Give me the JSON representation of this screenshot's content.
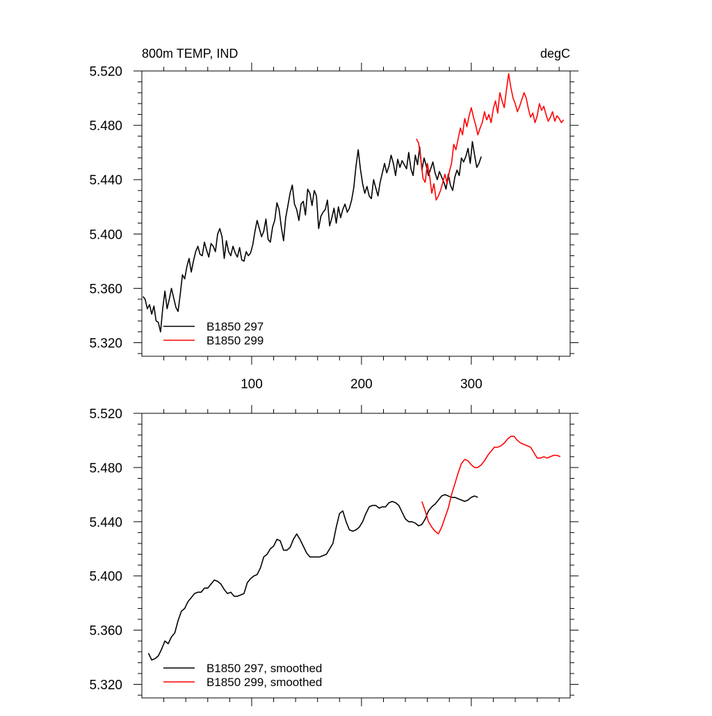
{
  "chart_data": [
    {
      "type": "line",
      "title_left": "800m TEMP, IND",
      "title_right": "degC",
      "xlabel": "",
      "ylabel": "",
      "xlim": [
        0,
        390
      ],
      "ylim": [
        5.31,
        5.52
      ],
      "xticks": [
        100,
        200,
        300
      ],
      "xtick_labels": [
        "100",
        "200",
        "300"
      ],
      "yticks": [
        5.32,
        5.36,
        5.4,
        5.44,
        5.48,
        5.52
      ],
      "ytick_labels": [
        "5.320",
        "5.360",
        "5.400",
        "5.440",
        "5.480",
        "5.520"
      ],
      "legend_position": "bottom-left",
      "series": [
        {
          "name": "B1850 297",
          "color": "#000000",
          "x": [
            1,
            3,
            5,
            7,
            9,
            11,
            13,
            15,
            17,
            19,
            21,
            23,
            25,
            27,
            29,
            31,
            33,
            35,
            37,
            39,
            41,
            43,
            45,
            47,
            49,
            51,
            53,
            55,
            57,
            59,
            61,
            63,
            65,
            67,
            69,
            71,
            73,
            75,
            77,
            79,
            81,
            83,
            85,
            87,
            89,
            91,
            93,
            95,
            97,
            99,
            101,
            103,
            105,
            107,
            109,
            111,
            113,
            115,
            117,
            119,
            121,
            123,
            125,
            127,
            129,
            131,
            133,
            135,
            137,
            139,
            141,
            143,
            145,
            147,
            149,
            151,
            153,
            155,
            157,
            159,
            161,
            163,
            165,
            167,
            169,
            171,
            173,
            175,
            177,
            179,
            181,
            183,
            185,
            187,
            189,
            191,
            193,
            195,
            197,
            199,
            201,
            203,
            205,
            207,
            209,
            211,
            213,
            215,
            217,
            219,
            221,
            223,
            225,
            227,
            229,
            231,
            233,
            235,
            237,
            239,
            241,
            243,
            245,
            247,
            249,
            251,
            253,
            255,
            257,
            259,
            261,
            263,
            265,
            267,
            269,
            271,
            273,
            275,
            277,
            279,
            281,
            283,
            285,
            287,
            289,
            291,
            293,
            295,
            297,
            299,
            301,
            303,
            305,
            307,
            309
          ],
          "values": [
            5.354,
            5.352,
            5.345,
            5.348,
            5.341,
            5.347,
            5.336,
            5.335,
            5.328,
            5.345,
            5.358,
            5.345,
            5.352,
            5.36,
            5.353,
            5.346,
            5.343,
            5.356,
            5.37,
            5.367,
            5.376,
            5.382,
            5.372,
            5.38,
            5.387,
            5.391,
            5.385,
            5.384,
            5.394,
            5.388,
            5.383,
            5.393,
            5.391,
            5.387,
            5.4,
            5.404,
            5.398,
            5.382,
            5.395,
            5.387,
            5.384,
            5.391,
            5.386,
            5.383,
            5.39,
            5.381,
            5.38,
            5.387,
            5.384,
            5.386,
            5.392,
            5.402,
            5.41,
            5.404,
            5.398,
            5.402,
            5.411,
            5.396,
            5.394,
            5.405,
            5.41,
            5.423,
            5.418,
            5.405,
            5.395,
            5.412,
            5.421,
            5.43,
            5.436,
            5.422,
            5.418,
            5.41,
            5.422,
            5.424,
            5.414,
            5.433,
            5.43,
            5.421,
            5.432,
            5.428,
            5.404,
            5.413,
            5.416,
            5.418,
            5.425,
            5.406,
            5.412,
            5.419,
            5.408,
            5.42,
            5.412,
            5.418,
            5.422,
            5.416,
            5.419,
            5.425,
            5.434,
            5.45,
            5.462,
            5.448,
            5.437,
            5.43,
            5.435,
            5.428,
            5.426,
            5.44,
            5.434,
            5.428,
            5.438,
            5.445,
            5.452,
            5.445,
            5.45,
            5.458,
            5.452,
            5.443,
            5.455,
            5.449,
            5.454,
            5.451,
            5.448,
            5.46,
            5.448,
            5.443,
            5.458,
            5.451,
            5.464,
            5.447,
            5.456,
            5.45,
            5.443,
            5.448,
            5.453,
            5.445,
            5.44,
            5.446,
            5.442,
            5.438,
            5.433,
            5.444,
            5.436,
            5.432,
            5.442,
            5.447,
            5.443,
            5.456,
            5.453,
            5.457,
            5.463,
            5.452,
            5.468,
            5.458,
            5.449,
            5.452,
            5.457
          ]
        },
        {
          "name": "B1850 299",
          "color": "#ff0000",
          "x": [
            250,
            252,
            254,
            256,
            258,
            260,
            262,
            264,
            266,
            268,
            270,
            272,
            274,
            276,
            278,
            280,
            282,
            284,
            286,
            288,
            290,
            292,
            294,
            296,
            298,
            300,
            302,
            304,
            306,
            308,
            310,
            312,
            314,
            316,
            318,
            320,
            322,
            324,
            326,
            328,
            330,
            332,
            334,
            336,
            338,
            340,
            342,
            344,
            346,
            348,
            350,
            352,
            354,
            356,
            358,
            360,
            362,
            364,
            366,
            368,
            370,
            372,
            374,
            376,
            378,
            380,
            382,
            384
          ],
          "values": [
            5.47,
            5.467,
            5.455,
            5.441,
            5.438,
            5.452,
            5.443,
            5.43,
            5.437,
            5.425,
            5.428,
            5.432,
            5.438,
            5.444,
            5.437,
            5.446,
            5.452,
            5.466,
            5.462,
            5.47,
            5.478,
            5.473,
            5.485,
            5.479,
            5.487,
            5.493,
            5.486,
            5.48,
            5.473,
            5.478,
            5.482,
            5.49,
            5.484,
            5.488,
            5.482,
            5.492,
            5.498,
            5.489,
            5.504,
            5.498,
            5.493,
            5.506,
            5.518,
            5.508,
            5.5,
            5.496,
            5.49,
            5.494,
            5.499,
            5.504,
            5.5,
            5.492,
            5.486,
            5.489,
            5.482,
            5.487,
            5.496,
            5.491,
            5.494,
            5.488,
            5.483,
            5.486,
            5.49,
            5.483,
            5.487,
            5.485,
            5.482,
            5.484
          ]
        }
      ]
    },
    {
      "type": "line",
      "title_left": "",
      "title_right": "",
      "xlabel": "",
      "ylabel": "",
      "xlim": [
        0,
        390
      ],
      "ylim": [
        5.31,
        5.52
      ],
      "xticks": [
        100,
        200,
        300
      ],
      "xtick_labels": [],
      "yticks": [
        5.32,
        5.36,
        5.4,
        5.44,
        5.48,
        5.52
      ],
      "ytick_labels": [
        "5.320",
        "5.360",
        "5.400",
        "5.440",
        "5.480",
        "5.520"
      ],
      "legend_position": "bottom-left",
      "series": [
        {
          "name": "B1850 297, smoothed",
          "color": "#000000",
          "x": [
            6,
            9,
            12,
            15,
            18,
            21,
            24,
            27,
            30,
            33,
            36,
            39,
            42,
            45,
            48,
            51,
            54,
            57,
            60,
            63,
            66,
            69,
            72,
            75,
            78,
            81,
            84,
            87,
            90,
            93,
            96,
            99,
            102,
            105,
            108,
            111,
            114,
            117,
            120,
            123,
            126,
            129,
            132,
            135,
            138,
            141,
            144,
            147,
            150,
            153,
            156,
            159,
            162,
            165,
            168,
            171,
            174,
            177,
            180,
            183,
            186,
            189,
            192,
            195,
            198,
            201,
            204,
            207,
            210,
            213,
            216,
            219,
            222,
            225,
            228,
            231,
            234,
            237,
            240,
            243,
            246,
            249,
            252,
            255,
            258,
            261,
            264,
            267,
            270,
            273,
            276,
            279,
            282,
            285,
            288,
            291,
            294,
            297,
            300,
            303,
            306
          ],
          "values": [
            5.343,
            5.338,
            5.339,
            5.341,
            5.346,
            5.352,
            5.35,
            5.355,
            5.358,
            5.367,
            5.374,
            5.376,
            5.381,
            5.384,
            5.387,
            5.388,
            5.388,
            5.391,
            5.391,
            5.394,
            5.397,
            5.396,
            5.394,
            5.39,
            5.387,
            5.388,
            5.385,
            5.385,
            5.386,
            5.387,
            5.395,
            5.398,
            5.4,
            5.401,
            5.406,
            5.414,
            5.416,
            5.42,
            5.422,
            5.427,
            5.426,
            5.419,
            5.419,
            5.421,
            5.427,
            5.431,
            5.427,
            5.422,
            5.417,
            5.414,
            5.414,
            5.414,
            5.414,
            5.415,
            5.416,
            5.42,
            5.424,
            5.436,
            5.446,
            5.448,
            5.44,
            5.434,
            5.433,
            5.434,
            5.436,
            5.44,
            5.446,
            5.451,
            5.452,
            5.452,
            5.45,
            5.451,
            5.451,
            5.454,
            5.455,
            5.454,
            5.452,
            5.447,
            5.442,
            5.44,
            5.44,
            5.439,
            5.437,
            5.438,
            5.442,
            5.448,
            5.451,
            5.453,
            5.456,
            5.459,
            5.46,
            5.459,
            5.458,
            5.458,
            5.457,
            5.456,
            5.455,
            5.456,
            5.458,
            5.459,
            5.458
          ]
        },
        {
          "name": "B1850 299, smoothed",
          "color": "#ff0000",
          "x": [
            255,
            258,
            261,
            264,
            267,
            270,
            273,
            276,
            279,
            282,
            285,
            288,
            291,
            294,
            297,
            300,
            303,
            306,
            309,
            312,
            315,
            318,
            321,
            324,
            327,
            330,
            333,
            336,
            339,
            342,
            345,
            348,
            351,
            354,
            357,
            360,
            363,
            366,
            369,
            372,
            375,
            378,
            381
          ],
          "values": [
            5.455,
            5.448,
            5.44,
            5.436,
            5.433,
            5.431,
            5.436,
            5.443,
            5.45,
            5.46,
            5.468,
            5.476,
            5.483,
            5.486,
            5.485,
            5.482,
            5.48,
            5.48,
            5.482,
            5.485,
            5.489,
            5.492,
            5.495,
            5.495,
            5.496,
            5.498,
            5.501,
            5.503,
            5.503,
            5.5,
            5.498,
            5.497,
            5.496,
            5.495,
            5.491,
            5.487,
            5.487,
            5.488,
            5.487,
            5.488,
            5.489,
            5.489,
            5.488
          ]
        }
      ]
    }
  ]
}
